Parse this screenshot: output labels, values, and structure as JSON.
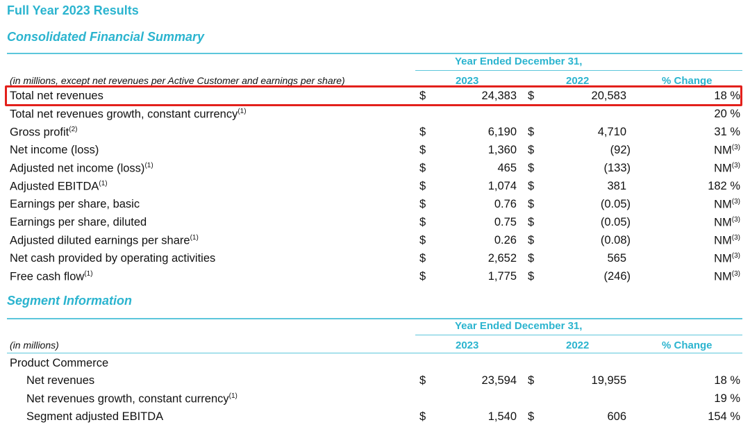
{
  "title": "Full Year 2023 Results",
  "summary": {
    "heading": "Consolidated Financial Summary",
    "period_header": "Year Ended December 31,",
    "units_note": "(in millions, except net revenues per Active Customer and earnings per share)",
    "col_2023": "2023",
    "col_2022": "2022",
    "col_change": "% Change",
    "rows": [
      {
        "label": "Total net revenues",
        "sup": "",
        "d1": "$",
        "v2023": "24,383",
        "d2": "$",
        "v2022": "20,583",
        "change": "18 %",
        "csup": ""
      },
      {
        "label": "Total net revenues growth, constant currency",
        "sup": "(1)",
        "d1": "",
        "v2023": "",
        "d2": "",
        "v2022": "",
        "change": "20 %",
        "csup": ""
      },
      {
        "label": "Gross profit",
        "sup": "(2)",
        "d1": "$",
        "v2023": "6,190",
        "d2": "$",
        "v2022": "4,710",
        "change": "31 %",
        "csup": ""
      },
      {
        "label": "Net income (loss)",
        "sup": "",
        "d1": "$",
        "v2023": "1,360",
        "d2": "$",
        "v2022": "(92)",
        "change": "NM",
        "csup": "(3)"
      },
      {
        "label": "Adjusted net income (loss)",
        "sup": "(1)",
        "d1": "$",
        "v2023": "465",
        "d2": "$",
        "v2022": "(133)",
        "change": "NM",
        "csup": "(3)"
      },
      {
        "label": "Adjusted EBITDA",
        "sup": "(1)",
        "d1": "$",
        "v2023": "1,074",
        "d2": "$",
        "v2022": "381",
        "change": "182 %",
        "csup": ""
      },
      {
        "label": "Earnings per share, basic",
        "sup": "",
        "d1": "$",
        "v2023": "0.76",
        "d2": "$",
        "v2022": "(0.05)",
        "change": "NM",
        "csup": "(3)"
      },
      {
        "label": "Earnings per share, diluted",
        "sup": "",
        "d1": "$",
        "v2023": "0.75",
        "d2": "$",
        "v2022": "(0.05)",
        "change": "NM",
        "csup": "(3)"
      },
      {
        "label": "Adjusted diluted earnings per share",
        "sup": "(1)",
        "d1": "$",
        "v2023": "0.26",
        "d2": "$",
        "v2022": "(0.08)",
        "change": "NM",
        "csup": "(3)"
      },
      {
        "label": "Net cash provided by operating activities",
        "sup": "",
        "d1": "$",
        "v2023": "2,652",
        "d2": "$",
        "v2022": "565",
        "change": "NM",
        "csup": "(3)"
      },
      {
        "label": "Free cash flow",
        "sup": "(1)",
        "d1": "$",
        "v2023": "1,775",
        "d2": "$",
        "v2022": "(246)",
        "change": "NM",
        "csup": "(3)"
      }
    ]
  },
  "segment": {
    "heading": "Segment Information",
    "period_header": "Year Ended December 31,",
    "units_note": "(in millions)",
    "col_2023": "2023",
    "col_2022": "2022",
    "col_change": "% Change",
    "group_label": "Product Commerce",
    "rows": [
      {
        "label": "Net revenues",
        "sup": "",
        "d1": "$",
        "v2023": "23,594",
        "d2": "$",
        "v2022": "19,955",
        "change": "18 %",
        "csup": ""
      },
      {
        "label": "Net revenues growth, constant currency",
        "sup": "(1)",
        "d1": "",
        "v2023": "",
        "d2": "",
        "v2022": "",
        "change": "19 %",
        "csup": ""
      },
      {
        "label": "Segment adjusted EBITDA",
        "sup": "",
        "d1": "$",
        "v2023": "1,540",
        "d2": "$",
        "v2022": "606",
        "change": "154 %",
        "csup": ""
      }
    ]
  }
}
